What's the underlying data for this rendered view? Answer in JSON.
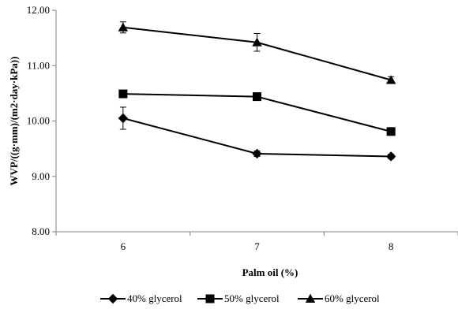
{
  "chart_data": {
    "type": "line",
    "title": "",
    "xlabel": "Palm oil (%)",
    "ylabel": "WVP/((g·mm)/(m2·day·kPa))",
    "categories": [
      "6",
      "7",
      "8"
    ],
    "ylim": [
      8.0,
      12.0
    ],
    "yticks": [
      "8.00",
      "9.00",
      "10.00",
      "11.00",
      "12.00"
    ],
    "grid": false,
    "legend_position": "bottom",
    "series": [
      {
        "name": "40% glycerol",
        "marker": "diamond",
        "values": [
          10.05,
          9.41,
          9.36
        ],
        "errors": [
          0.2,
          0.05,
          0.04
        ]
      },
      {
        "name": "50% glycerol",
        "marker": "square",
        "values": [
          10.49,
          10.44,
          9.81
        ],
        "errors": [
          0.0,
          0.0,
          0.0
        ]
      },
      {
        "name": "60% glycerol",
        "marker": "triangle",
        "values": [
          11.69,
          11.42,
          10.74
        ],
        "errors": [
          0.1,
          0.16,
          0.06
        ]
      }
    ]
  }
}
